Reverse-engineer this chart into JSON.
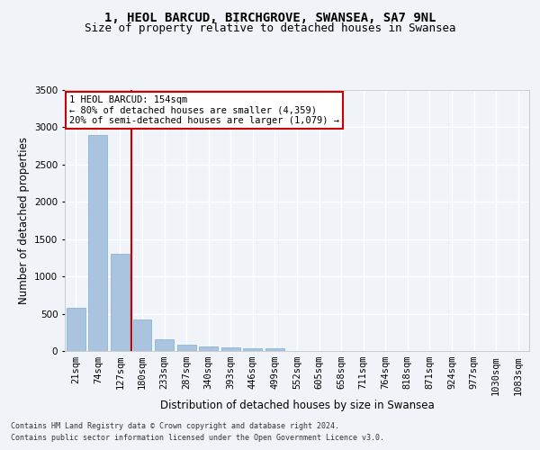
{
  "title": "1, HEOL BARCUD, BIRCHGROVE, SWANSEA, SA7 9NL",
  "subtitle": "Size of property relative to detached houses in Swansea",
  "xlabel": "Distribution of detached houses by size in Swansea",
  "ylabel": "Number of detached properties",
  "footnote1": "Contains HM Land Registry data © Crown copyright and database right 2024.",
  "footnote2": "Contains public sector information licensed under the Open Government Licence v3.0.",
  "categories": [
    "21sqm",
    "74sqm",
    "127sqm",
    "180sqm",
    "233sqm",
    "287sqm",
    "340sqm",
    "393sqm",
    "446sqm",
    "499sqm",
    "552sqm",
    "605sqm",
    "658sqm",
    "711sqm",
    "764sqm",
    "818sqm",
    "871sqm",
    "924sqm",
    "977sqm",
    "1030sqm",
    "1083sqm"
  ],
  "values": [
    575,
    2900,
    1300,
    420,
    155,
    90,
    55,
    45,
    40,
    40,
    0,
    0,
    0,
    0,
    0,
    0,
    0,
    0,
    0,
    0,
    0
  ],
  "bar_color": "#aac4e0",
  "bar_edge_color": "#7aafd4",
  "highlight_bar_index": 2,
  "highlight_line_color": "#cc0000",
  "annotation_text": "1 HEOL BARCUD: 154sqm\n← 80% of detached houses are smaller (4,359)\n20% of semi-detached houses are larger (1,079) →",
  "annotation_box_color": "#cc0000",
  "background_color": "#f0f4f8",
  "grid_color": "#ffffff",
  "ylim": [
    0,
    3500
  ],
  "yticks": [
    0,
    500,
    1000,
    1500,
    2000,
    2500,
    3000,
    3500
  ],
  "title_fontsize": 10,
  "subtitle_fontsize": 9,
  "axis_label_fontsize": 8.5,
  "tick_fontsize": 7.5,
  "footnote_fontsize": 6.0,
  "annotation_fontsize": 7.5
}
